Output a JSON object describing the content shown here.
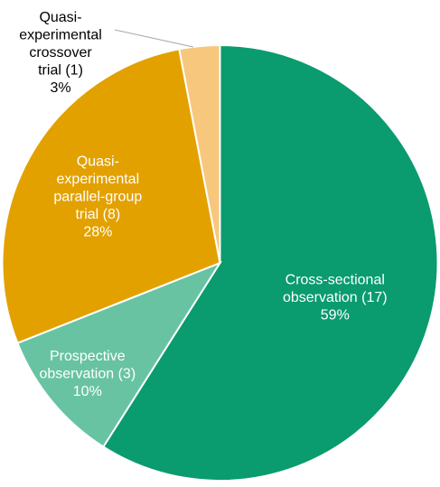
{
  "chart_data": {
    "type": "pie",
    "slices": [
      {
        "name": "Cross-sectional observation",
        "count": 17,
        "value": 59,
        "label_lines": [
          "Cross-sectional",
          "observation (17)",
          "59%"
        ],
        "color": "#0a9b6e",
        "label_color": "#ffffff"
      },
      {
        "name": "Prospective observation",
        "count": 3,
        "value": 10,
        "label_lines": [
          "Prospective",
          "observation (3)",
          "10%"
        ],
        "color": "#68c3a3",
        "label_color": "#ffffff"
      },
      {
        "name": "Quasi-experimental parallel-group trial",
        "count": 8,
        "value": 28,
        "label_lines": [
          "Quasi-",
          "experimental",
          "parallel-group",
          "trial (8)",
          "28%"
        ],
        "color": "#e3a100",
        "label_color": "#ffffff"
      },
      {
        "name": "Quasi-experimental crossover trial",
        "count": 1,
        "value": 3,
        "label_lines": [
          "Quasi-",
          "experimental",
          "crossover",
          "trial (1)",
          "3%"
        ],
        "color": "#f7c77d",
        "label_color": "#000000"
      }
    ],
    "start_angle_deg": 0,
    "direction": "clockwise",
    "legend": "none",
    "title": ""
  }
}
